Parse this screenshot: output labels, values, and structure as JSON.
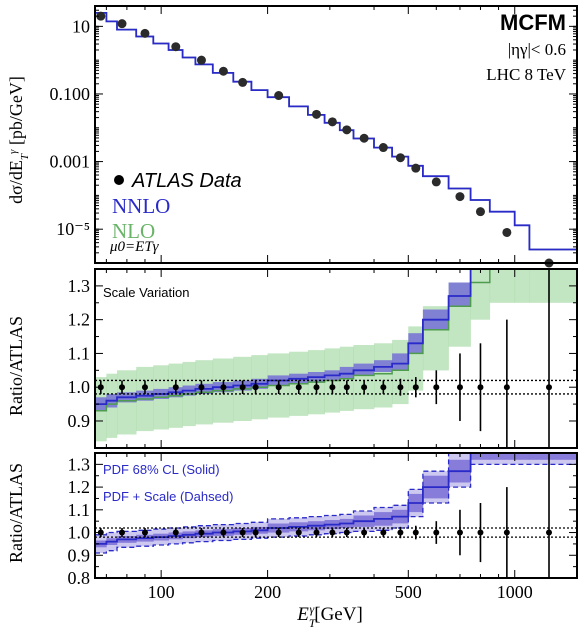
{
  "chart_data": [
    {
      "type": "line",
      "panel": "spectrum",
      "xscale": "log",
      "yscale": "log",
      "xlim": [
        65,
        1500
      ],
      "ylim": [
        1e-06,
        40
      ],
      "ylabel": "dσ/dE_T^γ [pb/GeV]",
      "yticks": [
        {
          "value": 10,
          "label": "10"
        },
        {
          "value": 0.1,
          "label": "0.100"
        },
        {
          "value": 0.001,
          "label": "0.001"
        },
        {
          "value": 1e-05,
          "label": "10⁻⁵"
        }
      ],
      "annotations": {
        "program": "MCFM",
        "cut": "|ηγ|< 0.6",
        "collider": "LHC 8 TeV",
        "scale": "μ0=ETγ"
      },
      "legend": {
        "placement": "middle-left",
        "data": "ATLAS Data",
        "nnlo": "NNLO",
        "nlo": "NLO"
      },
      "colors": {
        "nnlo": "#2a2ac8",
        "nlo": "#6ab46a",
        "data": "#2b2b2b"
      },
      "bin_edges": [
        65,
        70,
        75,
        85,
        95,
        105,
        115,
        125,
        140,
        160,
        180,
        200,
        230,
        260,
        290,
        320,
        350,
        400,
        450,
        500,
        550,
        650,
        750,
        850,
        1000,
        1100,
        1500
      ],
      "nnlo_values": [
        25,
        14,
        8,
        5,
        3.1,
        2.0,
        1.2,
        0.75,
        0.42,
        0.23,
        0.13,
        0.08,
        0.043,
        0.024,
        0.014,
        0.0085,
        0.0048,
        0.0026,
        0.0014,
        0.00075,
        0.00037,
        0.00016,
        7.3e-05,
        3.3e-05,
        1.3e-05,
        2.5e-06
      ],
      "data_points": {
        "x": [
          67.5,
          77.5,
          90,
          110,
          130,
          150,
          170,
          215,
          275,
          305,
          335,
          375,
          425,
          475,
          525,
          600,
          700,
          800,
          950,
          1250
        ],
        "y": [
          20,
          12,
          6.2,
          2.5,
          1.0,
          0.47,
          0.22,
          0.09,
          0.025,
          0.015,
          0.0087,
          0.0049,
          0.0026,
          0.0013,
          0.00064,
          0.00025,
          9.2e-05,
          3.3e-05,
          8e-06,
          1.9e-07
        ]
      }
    },
    {
      "type": "line",
      "panel": "ratio-scale",
      "xscale": "log",
      "xlim": [
        65,
        1500
      ],
      "ylim": [
        0.82,
        1.35
      ],
      "ylabel": "Ratio/ATLAS",
      "yticks": [
        {
          "value": 0.9,
          "label": "0.9"
        },
        {
          "value": 1.0,
          "label": "1.0"
        },
        {
          "value": 1.1,
          "label": "1.1"
        },
        {
          "value": 1.2,
          "label": "1.2"
        },
        {
          "value": 1.3,
          "label": "1.3"
        }
      ],
      "label": "Scale Variation",
      "bin_edges": [
        65,
        70,
        75,
        85,
        95,
        105,
        115,
        125,
        140,
        160,
        180,
        200,
        230,
        260,
        290,
        320,
        350,
        400,
        450,
        500,
        550,
        650,
        750,
        850,
        1000,
        1100,
        1500
      ],
      "nnlo_center": [
        0.95,
        0.96,
        0.97,
        0.975,
        0.98,
        0.985,
        0.99,
        0.995,
        1.0,
        1.005,
        1.01,
        1.02,
        1.025,
        1.03,
        1.035,
        1.04,
        1.05,
        1.06,
        1.07,
        1.13,
        1.2,
        1.27,
        1.4,
        1.4,
        1.4,
        1.4
      ],
      "nnlo_band": [
        [
          0.93,
          0.97
        ],
        [
          0.94,
          0.98
        ],
        [
          0.955,
          0.985
        ],
        [
          0.96,
          0.99
        ],
        [
          0.965,
          0.995
        ],
        [
          0.97,
          1.0
        ],
        [
          0.975,
          1.005
        ],
        [
          0.98,
          1.01
        ],
        [
          0.985,
          1.015
        ],
        [
          0.99,
          1.02
        ],
        [
          0.995,
          1.025
        ],
        [
          1.005,
          1.035
        ],
        [
          1.01,
          1.04
        ],
        [
          1.015,
          1.045
        ],
        [
          1.02,
          1.05
        ],
        [
          1.025,
          1.06
        ],
        [
          1.035,
          1.07
        ],
        [
          1.045,
          1.08
        ],
        [
          1.05,
          1.1
        ],
        [
          1.1,
          1.16
        ],
        [
          1.17,
          1.23
        ],
        [
          1.24,
          1.31
        ],
        [
          1.36,
          1.45
        ],
        [
          1.36,
          1.45
        ],
        [
          1.36,
          1.45
        ],
        [
          1.36,
          1.45
        ]
      ],
      "nlo_center": [
        0.93,
        0.95,
        0.96,
        0.965,
        0.97,
        0.975,
        0.98,
        0.985,
        0.99,
        0.995,
        1.0,
        1.005,
        1.01,
        1.015,
        1.02,
        1.025,
        1.035,
        1.04,
        1.05,
        1.1,
        1.17,
        1.24,
        1.31,
        1.4,
        1.4,
        1.4
      ],
      "nlo_band": [
        [
          0.84,
          1.03
        ],
        [
          0.85,
          1.04
        ],
        [
          0.86,
          1.05
        ],
        [
          0.87,
          1.06
        ],
        [
          0.875,
          1.065
        ],
        [
          0.88,
          1.07
        ],
        [
          0.885,
          1.075
        ],
        [
          0.89,
          1.08
        ],
        [
          0.895,
          1.085
        ],
        [
          0.9,
          1.09
        ],
        [
          0.905,
          1.095
        ],
        [
          0.91,
          1.1
        ],
        [
          0.915,
          1.105
        ],
        [
          0.92,
          1.11
        ],
        [
          0.925,
          1.115
        ],
        [
          0.93,
          1.12
        ],
        [
          0.935,
          1.125
        ],
        [
          0.94,
          1.13
        ],
        [
          0.95,
          1.14
        ],
        [
          0.99,
          1.18
        ],
        [
          1.05,
          1.24
        ],
        [
          1.12,
          1.31
        ],
        [
          1.2,
          1.38
        ],
        [
          1.25,
          1.42
        ],
        [
          1.25,
          1.42
        ],
        [
          1.25,
          1.42
        ]
      ],
      "data_points": {
        "x": [
          67.5,
          77.5,
          90,
          110,
          130,
          150,
          170,
          185,
          215,
          245,
          275,
          305,
          335,
          375,
          425,
          475,
          525,
          600,
          700,
          800,
          950,
          1250
        ],
        "y": [
          1,
          1,
          1,
          1,
          1,
          1,
          1,
          1,
          1,
          1,
          1,
          1,
          1,
          1,
          1,
          1,
          1,
          1,
          1,
          1,
          1,
          1
        ],
        "err": [
          0.02,
          0.02,
          0.02,
          0.02,
          0.02,
          0.02,
          0.02,
          0.02,
          0.02,
          0.02,
          0.02,
          0.02,
          0.02,
          0.02,
          0.02,
          0.025,
          0.03,
          0.05,
          0.1,
          0.13,
          0.2,
          0.5
        ]
      },
      "reference_lines": [
        0.98,
        1.02
      ]
    },
    {
      "type": "line",
      "panel": "ratio-pdf",
      "xscale": "log",
      "xlim": [
        65,
        1500
      ],
      "ylim": [
        0.8,
        1.35
      ],
      "xlabel": "ETγ[GeV]",
      "ylabel": "Ratio/ATLAS",
      "xticks": [
        {
          "value": 100,
          "label": "100"
        },
        {
          "value": 200,
          "label": "200"
        },
        {
          "value": 500,
          "label": "500"
        },
        {
          "value": 1000,
          "label": "1000"
        }
      ],
      "yticks": [
        {
          "value": 0.8,
          "label": "0.8"
        },
        {
          "value": 0.9,
          "label": "0.9"
        },
        {
          "value": 1.0,
          "label": "1.0"
        },
        {
          "value": 1.1,
          "label": "1.1"
        },
        {
          "value": 1.2,
          "label": "1.2"
        },
        {
          "value": 1.3,
          "label": "1.3"
        }
      ],
      "legend": {
        "placement": "top-left",
        "solid": "PDF 68% CL (Solid)",
        "dashed": "PDF + Scale (Dahsed)"
      },
      "bin_edges": [
        65,
        70,
        75,
        85,
        95,
        105,
        115,
        125,
        140,
        160,
        180,
        200,
        230,
        260,
        290,
        320,
        350,
        400,
        450,
        500,
        550,
        650,
        750,
        850,
        1000,
        1100,
        1500
      ],
      "center": [
        0.95,
        0.96,
        0.97,
        0.975,
        0.98,
        0.985,
        0.99,
        0.995,
        1.0,
        1.005,
        1.01,
        1.02,
        1.025,
        1.03,
        1.035,
        1.04,
        1.05,
        1.06,
        1.07,
        1.13,
        1.2,
        1.27,
        1.4,
        1.4,
        1.4,
        1.4
      ],
      "pdf_band": [
        [
          0.935,
          0.965
        ],
        [
          0.945,
          0.975
        ],
        [
          0.955,
          0.985
        ],
        [
          0.96,
          0.99
        ],
        [
          0.965,
          0.995
        ],
        [
          0.97,
          1.0
        ],
        [
          0.975,
          1.005
        ],
        [
          0.98,
          1.01
        ],
        [
          0.985,
          1.015
        ],
        [
          0.99,
          1.02
        ],
        [
          0.995,
          1.025
        ],
        [
          1.0,
          1.04
        ],
        [
          1.005,
          1.045
        ],
        [
          1.01,
          1.05
        ],
        [
          1.015,
          1.055
        ],
        [
          1.02,
          1.06
        ],
        [
          1.025,
          1.075
        ],
        [
          1.03,
          1.09
        ],
        [
          1.04,
          1.1
        ],
        [
          1.09,
          1.17
        ],
        [
          1.15,
          1.25
        ],
        [
          1.22,
          1.32
        ],
        [
          1.32,
          1.45
        ],
        [
          1.32,
          1.45
        ],
        [
          1.32,
          1.45
        ],
        [
          1.32,
          1.45
        ]
      ],
      "total_band": [
        [
          0.91,
          0.99
        ],
        [
          0.92,
          1.0
        ],
        [
          0.935,
          1.005
        ],
        [
          0.94,
          1.01
        ],
        [
          0.945,
          1.015
        ],
        [
          0.95,
          1.02
        ],
        [
          0.955,
          1.025
        ],
        [
          0.96,
          1.03
        ],
        [
          0.965,
          1.035
        ],
        [
          0.97,
          1.04
        ],
        [
          0.975,
          1.045
        ],
        [
          0.98,
          1.06
        ],
        [
          0.985,
          1.065
        ],
        [
          0.99,
          1.07
        ],
        [
          0.995,
          1.075
        ],
        [
          1.0,
          1.08
        ],
        [
          1.005,
          1.095
        ],
        [
          1.01,
          1.11
        ],
        [
          1.02,
          1.12
        ],
        [
          1.07,
          1.19
        ],
        [
          1.13,
          1.27
        ],
        [
          1.2,
          1.35
        ],
        [
          1.3,
          1.45
        ],
        [
          1.3,
          1.45
        ],
        [
          1.3,
          1.45
        ],
        [
          1.3,
          1.45
        ]
      ],
      "data_points": {
        "x": [
          67.5,
          77.5,
          90,
          110,
          130,
          150,
          170,
          185,
          215,
          245,
          275,
          305,
          335,
          375,
          425,
          475,
          525,
          600,
          700,
          800,
          950,
          1250
        ],
        "y": [
          1,
          1,
          1,
          1,
          1,
          1,
          1,
          1,
          1,
          1,
          1,
          1,
          1,
          1,
          1,
          1,
          1,
          1,
          1,
          1,
          1,
          1
        ],
        "err": [
          0.02,
          0.02,
          0.02,
          0.02,
          0.02,
          0.02,
          0.02,
          0.02,
          0.02,
          0.02,
          0.02,
          0.02,
          0.02,
          0.02,
          0.02,
          0.025,
          0.03,
          0.05,
          0.1,
          0.13,
          0.2,
          0.5
        ]
      },
      "reference_lines": [
        0.98,
        1.02
      ],
      "colors": {
        "pdf_fill": "#7b6fd6",
        "total_fill": "#c8c2ee",
        "line": "#2a2ac8"
      }
    }
  ]
}
